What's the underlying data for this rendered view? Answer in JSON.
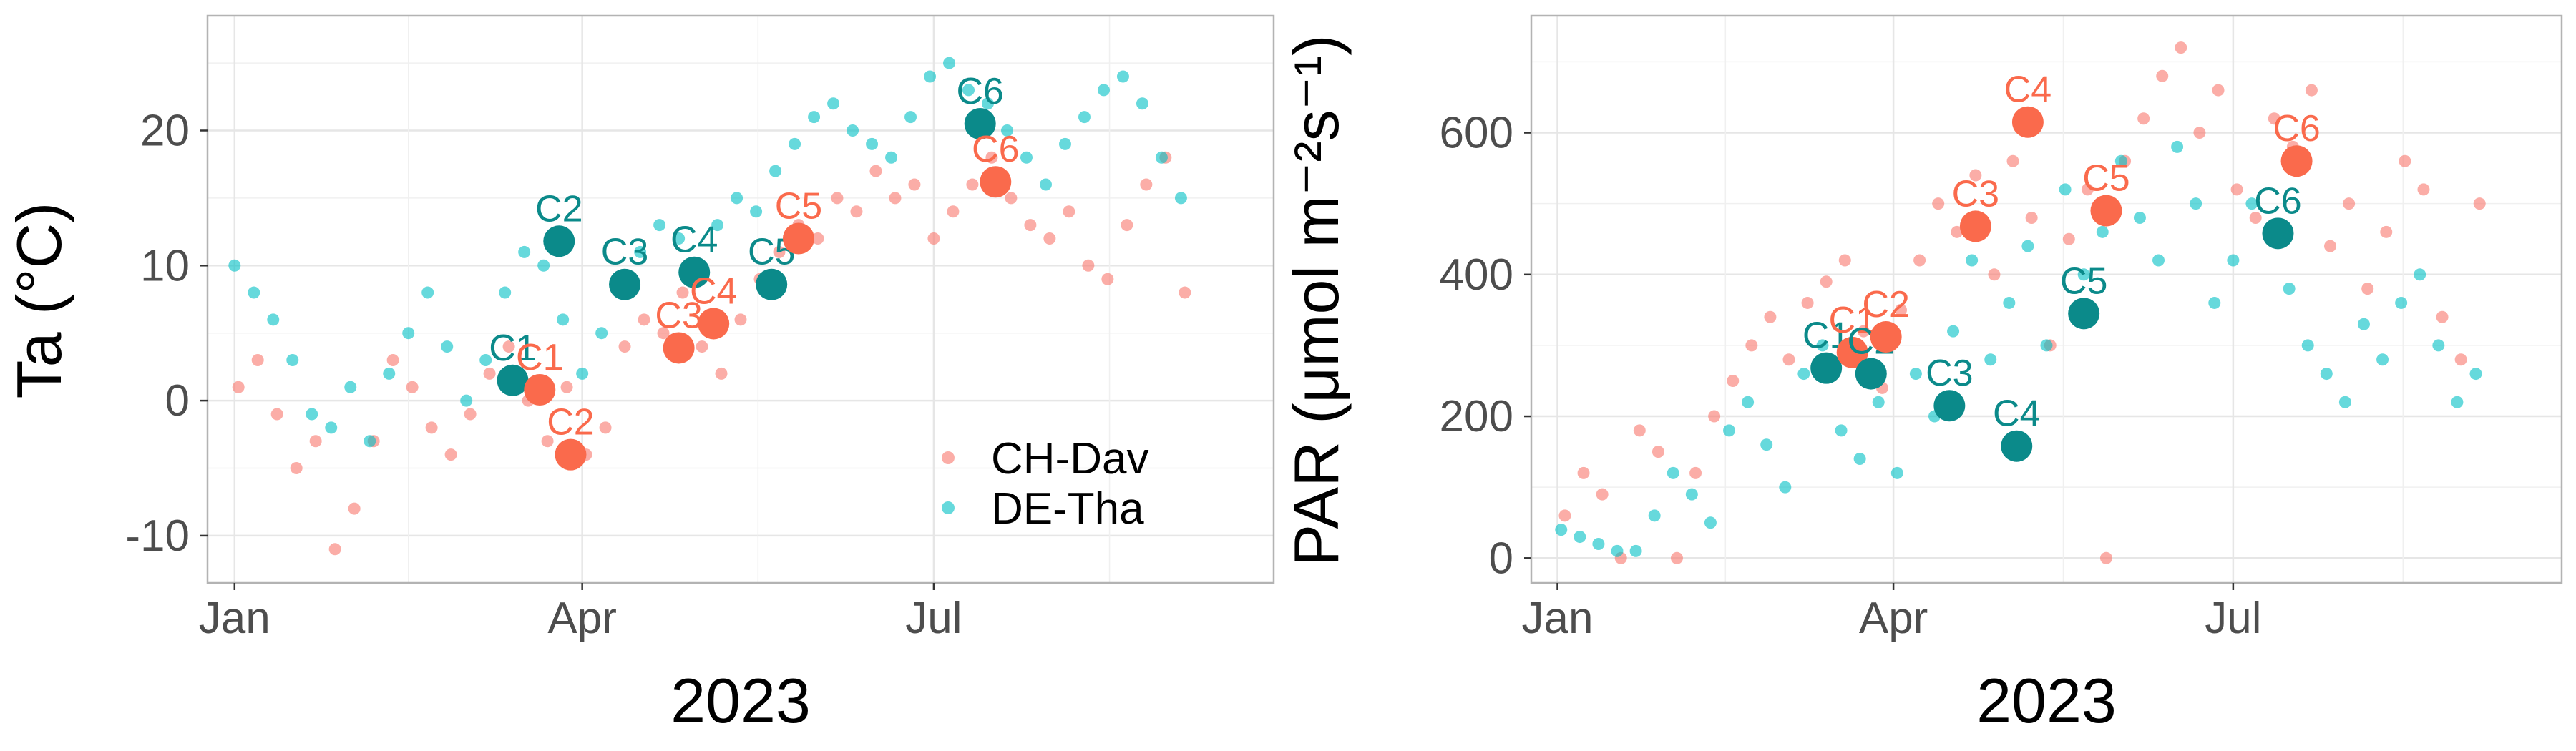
{
  "chart_data": [
    {
      "type": "scatter",
      "xlabel": "2023",
      "ylabel": "Ta (°C)",
      "ylim": [
        -13.5,
        28.5
      ],
      "xlim_days": [
        -7,
        269
      ],
      "x_ticks": [
        {
          "label": "Jan",
          "day": 0
        },
        {
          "label": "Apr",
          "day": 90
        },
        {
          "label": "Jul",
          "day": 181
        }
      ],
      "y_ticks": [
        -10,
        0,
        10,
        20
      ],
      "grid": true,
      "legend": {
        "position": "bottom-right",
        "entries": [
          "CH-Dav",
          "DE-Tha"
        ]
      },
      "colors": {
        "CH-Dav": "#f8766d",
        "DE-Tha": "#00bfc4",
        "CH-Dav-campaign": "#fa6a4c",
        "DE-Tha-campaign": "#0b8a8a"
      },
      "series": [
        {
          "name": "CH-Dav",
          "x": [
            "Jan 2",
            "Jan 7",
            "Jan 12",
            "Jan 17",
            "Jan 22",
            "Jan 27",
            "Feb 1",
            "Feb 6",
            "Feb 11",
            "Feb 16",
            "Feb 21",
            "Feb 26",
            "Mar 3",
            "Mar 8",
            "Mar 13",
            "Mar 18",
            "Mar 23",
            "Mar 28",
            "Apr 2",
            "Apr 7",
            "Apr 12",
            "Apr 17",
            "Apr 22",
            "Apr 27",
            "May 2",
            "May 7",
            "May 12",
            "May 17",
            "May 22",
            "May 27",
            "Jun 1",
            "Jun 6",
            "Jun 11",
            "Jun 16",
            "Jun 21",
            "Jun 26",
            "Jul 1",
            "Jul 6",
            "Jul 11",
            "Jul 16",
            "Jul 21",
            "Jul 26",
            "Jul 31",
            "Aug 5",
            "Aug 10",
            "Aug 15",
            "Aug 20",
            "Aug 25",
            "Aug 30",
            "Sep 4"
          ],
          "y": [
            1,
            3,
            -1,
            -5,
            -3,
            -11,
            -8,
            -3,
            3,
            1,
            -2,
            -4,
            -1,
            2,
            4,
            0,
            -3,
            1,
            -4,
            -2,
            4,
            6,
            5,
            8,
            4,
            2,
            6,
            9,
            11,
            13,
            12,
            15,
            14,
            17,
            15,
            16,
            12,
            14,
            16,
            18,
            15,
            13,
            12,
            14,
            10,
            9,
            13,
            16,
            18,
            8
          ]
        },
        {
          "name": "DE-Tha",
          "x": [
            "Jan 1",
            "Jan 6",
            "Jan 11",
            "Jan 16",
            "Jan 21",
            "Jan 26",
            "Jan 31",
            "Feb 5",
            "Feb 10",
            "Feb 15",
            "Feb 20",
            "Feb 25",
            "Mar 2",
            "Mar 7",
            "Mar 12",
            "Mar 17",
            "Mar 22",
            "Mar 27",
            "Apr 1",
            "Apr 6",
            "Apr 11",
            "Apr 16",
            "Apr 21",
            "Apr 26",
            "May 1",
            "May 6",
            "May 11",
            "May 16",
            "May 21",
            "May 26",
            "May 31",
            "Jun 5",
            "Jun 10",
            "Jun 15",
            "Jun 20",
            "Jun 25",
            "Jun 30",
            "Jul 5",
            "Jul 10",
            "Jul 15",
            "Jul 20",
            "Jul 25",
            "Jul 30",
            "Aug 4",
            "Aug 9",
            "Aug 14",
            "Aug 19",
            "Aug 24",
            "Aug 29",
            "Sep 3"
          ],
          "y": [
            10,
            8,
            6,
            3,
            -1,
            -2,
            1,
            -3,
            2,
            5,
            8,
            4,
            0,
            3,
            8,
            11,
            10,
            6,
            2,
            5,
            9,
            11,
            13,
            12,
            10,
            13,
            15,
            14,
            17,
            19,
            21,
            22,
            20,
            19,
            18,
            21,
            24,
            25,
            23,
            22,
            20,
            18,
            16,
            19,
            21,
            23,
            24,
            22,
            18,
            15
          ]
        }
      ],
      "annotations": [
        {
          "label": "C1",
          "site": "DE-Tha",
          "x": "Mar 14",
          "y": 1.5
        },
        {
          "label": "C1",
          "site": "CH-Dav",
          "x": "Mar 21",
          "y": 0.8
        },
        {
          "label": "C2",
          "site": "DE-Tha",
          "x": "Mar 26",
          "y": 11.8
        },
        {
          "label": "C2",
          "site": "CH-Dav",
          "x": "Mar 29",
          "y": -4
        },
        {
          "label": "C3",
          "site": "DE-Tha",
          "x": "Apr 12",
          "y": 8.6
        },
        {
          "label": "C3",
          "site": "CH-Dav",
          "x": "Apr 26",
          "y": 3.9
        },
        {
          "label": "C4",
          "site": "DE-Tha",
          "x": "Apr 30",
          "y": 9.5
        },
        {
          "label": "C4",
          "site": "CH-Dav",
          "x": "May 5",
          "y": 5.7
        },
        {
          "label": "C5",
          "site": "DE-Tha",
          "x": "May 20",
          "y": 8.6
        },
        {
          "label": "C5",
          "site": "CH-Dav",
          "x": "May 27",
          "y": 12
        },
        {
          "label": "C6",
          "site": "DE-Tha",
          "x": "Jul 13",
          "y": 20.5
        },
        {
          "label": "C6",
          "site": "CH-Dav",
          "x": "Jul 17",
          "y": 16.2
        }
      ]
    },
    {
      "type": "scatter",
      "xlabel": "2023",
      "ylabel": "PAR (μmol m⁻²s⁻¹)",
      "ylim": [
        -35,
        765
      ],
      "xlim_days": [
        -7,
        269
      ],
      "x_ticks": [
        {
          "label": "Jan",
          "day": 0
        },
        {
          "label": "Apr",
          "day": 90
        },
        {
          "label": "Jul",
          "day": 181
        }
      ],
      "y_ticks": [
        0,
        200,
        400,
        600
      ],
      "grid": true,
      "colors": {
        "CH-Dav": "#f8766d",
        "DE-Tha": "#00bfc4",
        "CH-Dav-campaign": "#fa6a4c",
        "DE-Tha-campaign": "#0b8a8a"
      },
      "series": [
        {
          "name": "CH-Dav",
          "x": [
            "Jan 3",
            "Jan 8",
            "Jan 13",
            "Jan 18",
            "Jan 23",
            "Jan 28",
            "Feb 2",
            "Feb 7",
            "Feb 12",
            "Feb 17",
            "Feb 22",
            "Feb 27",
            "Mar 4",
            "Mar 9",
            "Mar 14",
            "Mar 19",
            "Mar 24",
            "Mar 29",
            "Apr 3",
            "Apr 8",
            "Apr 13",
            "Apr 18",
            "Apr 23",
            "Apr 28",
            "May 3",
            "May 8",
            "May 13",
            "May 18",
            "May 23",
            "May 28",
            "Jun 2",
            "Jun 7",
            "Jun 12",
            "Jun 17",
            "Jun 22",
            "Jun 27",
            "Jul 2",
            "Jul 7",
            "Jul 12",
            "Jul 17",
            "Jul 22",
            "Jul 27",
            "Aug 1",
            "Aug 6",
            "Aug 11",
            "Aug 16",
            "Aug 21",
            "Aug 26",
            "Aug 31",
            "Sep 5"
          ],
          "y": [
            60,
            120,
            90,
            0,
            180,
            150,
            0,
            120,
            200,
            250,
            300,
            340,
            280,
            360,
            390,
            420,
            320,
            240,
            350,
            420,
            500,
            460,
            540,
            400,
            560,
            480,
            300,
            450,
            520,
            0,
            560,
            620,
            680,
            720,
            600,
            660,
            520,
            480,
            620,
            580,
            660,
            440,
            500,
            380,
            460,
            560,
            520,
            340,
            280,
            500
          ]
        },
        {
          "name": "DE-Tha",
          "x": [
            "Jan 2",
            "Jan 7",
            "Jan 12",
            "Jan 17",
            "Jan 22",
            "Jan 27",
            "Feb 1",
            "Feb 6",
            "Feb 11",
            "Feb 16",
            "Feb 21",
            "Feb 26",
            "Mar 3",
            "Mar 8",
            "Mar 13",
            "Mar 18",
            "Mar 23",
            "Mar 28",
            "Apr 2",
            "Apr 7",
            "Apr 12",
            "Apr 17",
            "Apr 22",
            "Apr 27",
            "May 2",
            "May 7",
            "May 12",
            "May 17",
            "May 22",
            "May 27",
            "Jun 1",
            "Jun 6",
            "Jun 11",
            "Jun 16",
            "Jun 21",
            "Jun 26",
            "Jul 1",
            "Jul 6",
            "Jul 11",
            "Jul 16",
            "Jul 21",
            "Jul 26",
            "Jul 31",
            "Aug 5",
            "Aug 10",
            "Aug 15",
            "Aug 20",
            "Aug 25",
            "Aug 30",
            "Sep 4"
          ],
          "y": [
            40,
            30,
            20,
            10,
            10,
            60,
            120,
            90,
            50,
            180,
            220,
            160,
            100,
            260,
            300,
            180,
            140,
            220,
            120,
            260,
            200,
            320,
            420,
            280,
            360,
            440,
            300,
            520,
            400,
            460,
            560,
            480,
            420,
            580,
            500,
            360,
            420,
            500,
            460,
            380,
            300,
            260,
            220,
            330,
            280,
            360,
            400,
            300,
            220,
            260
          ]
        }
      ],
      "annotations": [
        {
          "label": "C1",
          "site": "DE-Tha",
          "x": "Mar 14",
          "y": 268
        },
        {
          "label": "C1",
          "site": "CH-Dav",
          "x": "Mar 21",
          "y": 290
        },
        {
          "label": "C2",
          "site": "DE-Tha",
          "x": "Mar 26",
          "y": 260
        },
        {
          "label": "C2",
          "site": "CH-Dav",
          "x": "Mar 30",
          "y": 312
        },
        {
          "label": "C3",
          "site": "DE-Tha",
          "x": "Apr 16",
          "y": 215
        },
        {
          "label": "C3",
          "site": "CH-Dav",
          "x": "Apr 23",
          "y": 468
        },
        {
          "label": "C4",
          "site": "DE-Tha",
          "x": "May 4",
          "y": 158
        },
        {
          "label": "C4",
          "site": "CH-Dav",
          "x": "May 7",
          "y": 615
        },
        {
          "label": "C5",
          "site": "DE-Tha",
          "x": "May 22",
          "y": 345
        },
        {
          "label": "C5",
          "site": "CH-Dav",
          "x": "May 28",
          "y": 490
        },
        {
          "label": "C6",
          "site": "DE-Tha",
          "x": "Jul 13",
          "y": 458
        },
        {
          "label": "C6",
          "site": "CH-Dav",
          "x": "Jul 18",
          "y": 560
        }
      ]
    }
  ]
}
